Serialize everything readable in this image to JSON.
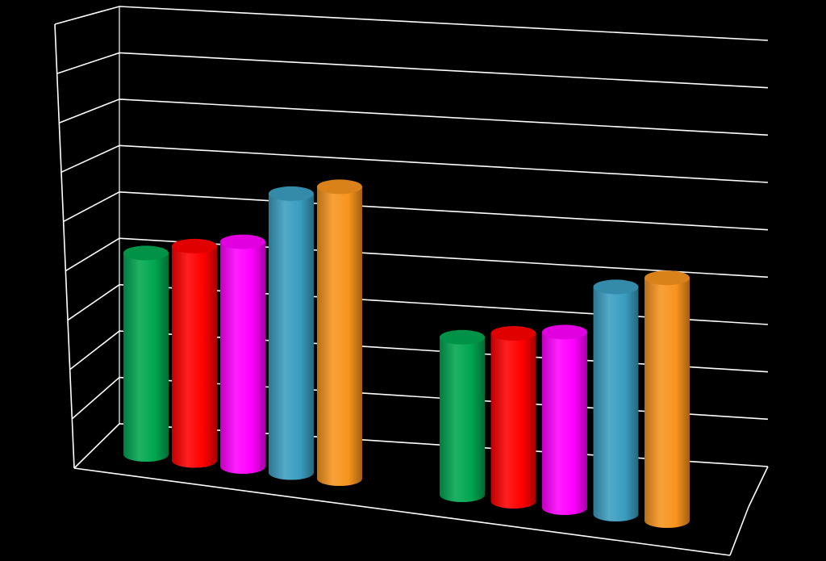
{
  "chart_data": {
    "type": "bar",
    "style": "3d-cylinder",
    "categories": [
      "",
      ""
    ],
    "series": [
      {
        "color": "#00a650",
        "values": [
          7.8,
          6.1
        ]
      },
      {
        "color": "#ff0000",
        "values": [
          8.3,
          6.5
        ]
      },
      {
        "color": "#ff00ff",
        "values": [
          8.7,
          6.8
        ]
      },
      {
        "color": "#3a9dc0",
        "values": [
          10.8,
          8.8
        ]
      },
      {
        "color": "#f7941d",
        "values": [
          11.3,
          9.4
        ]
      }
    ],
    "ylim": [
      0,
      12
    ],
    "grid": true,
    "legend": "none",
    "background": "#000000",
    "axis_color": "#ffffff"
  }
}
